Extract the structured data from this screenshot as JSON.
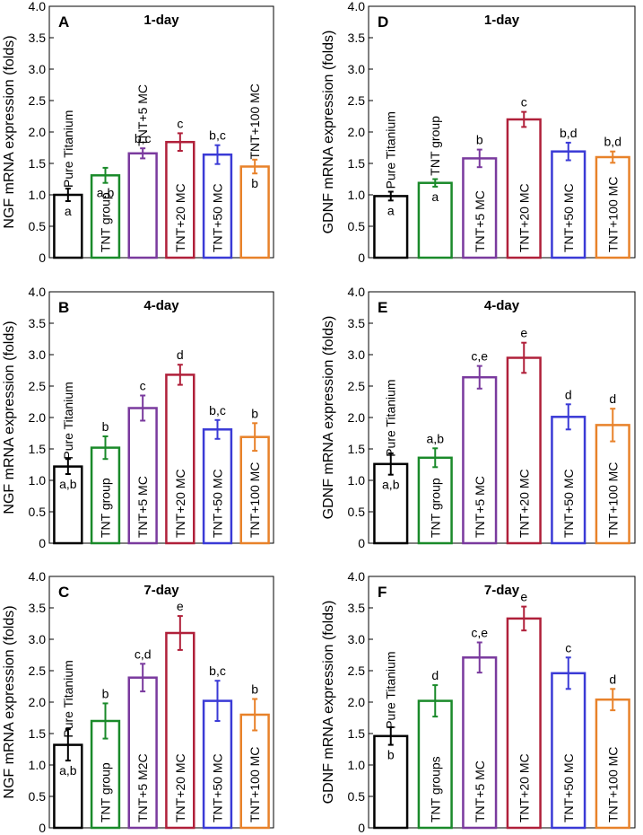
{
  "chart_data": [
    {
      "type": "bar",
      "panel": "A",
      "title": "1-day",
      "ylabel": "NGF mRNA expression (folds)",
      "ylim": [
        0,
        4.0
      ],
      "yticks": [
        "0",
        "0.5",
        "1.0",
        "1.5",
        "2.0",
        "2.5",
        "3.0",
        "3.5",
        "4.0"
      ],
      "categories": [
        "Pure Titanium",
        "TNT group",
        "TNT+5 MC",
        "TNT+20 MC",
        "TNT+50 MC",
        "TNT+100 MC"
      ],
      "values": [
        1.0,
        1.31,
        1.66,
        1.84,
        1.64,
        1.45
      ],
      "errors": [
        0.1,
        0.12,
        0.08,
        0.14,
        0.15,
        0.11
      ],
      "letters": [
        "a",
        "a,b",
        "b,c",
        "c",
        "b,c",
        "b"
      ],
      "label_pos": [
        "above",
        "in",
        "above",
        "in",
        "in",
        "above"
      ],
      "letter_pos": [
        "in",
        "in",
        "above",
        "above",
        "above",
        "in"
      ]
    },
    {
      "type": "bar",
      "panel": "D",
      "title": "1-day",
      "ylabel": "GDNF mRNA expression (folds)",
      "ylim": [
        0,
        4.0
      ],
      "yticks": [
        "0",
        "0.5",
        "1.0",
        "1.5",
        "2.0",
        "2.5",
        "3.0",
        "3.5",
        "4.0"
      ],
      "categories": [
        "Pure Titanium",
        "TNT group",
        "TNT+5 MC",
        "TNT+20 MC",
        "TNT+50 MC",
        "TNT+100 MC"
      ],
      "values": [
        0.98,
        1.19,
        1.58,
        2.2,
        1.69,
        1.6
      ],
      "errors": [
        0.07,
        0.06,
        0.14,
        0.12,
        0.14,
        0.09
      ],
      "letters": [
        "a",
        "a",
        "b",
        "c",
        "b,d",
        "b,d"
      ],
      "label_pos": [
        "above",
        "above",
        "in",
        "in",
        "in",
        "in"
      ],
      "letter_pos": [
        "in",
        "in",
        "above",
        "above",
        "above",
        "above"
      ]
    },
    {
      "type": "bar",
      "panel": "B",
      "title": "4-day",
      "ylabel": "NGF mRNA expression (folds)",
      "ylim": [
        0,
        4.0
      ],
      "yticks": [
        "0",
        "0.5",
        "1.0",
        "1.5",
        "2.0",
        "2.5",
        "3.0",
        "3.5",
        "4.0"
      ],
      "categories": [
        "Pure Titanium",
        "TNT group",
        "TNT+5 MC",
        "TNT+20 MC",
        "TNT+50 MC",
        "TNT+100 MC"
      ],
      "values": [
        1.22,
        1.52,
        2.15,
        2.68,
        1.81,
        1.69
      ],
      "errors": [
        0.12,
        0.18,
        0.2,
        0.16,
        0.15,
        0.22
      ],
      "letters": [
        "a,b",
        "b",
        "c",
        "d",
        "b,c",
        "b"
      ],
      "label_pos": [
        "above",
        "in",
        "in",
        "in",
        "in",
        "in"
      ],
      "letter_pos": [
        "in",
        "above",
        "above",
        "above",
        "above",
        "above"
      ]
    },
    {
      "type": "bar",
      "panel": "E",
      "title": "4-day",
      "ylabel": "GDNF mRNA expression (folds)",
      "ylim": [
        0,
        4.0
      ],
      "yticks": [
        "0",
        "0.5",
        "1.0",
        "1.5",
        "2.0",
        "2.5",
        "3.0",
        "3.5",
        "4.0"
      ],
      "categories": [
        "Pure Titanium",
        "TNT group",
        "TNT+5 MC",
        "TNT+20 MC",
        "TNT+50 MC",
        "TNT+100 MC"
      ],
      "values": [
        1.26,
        1.36,
        2.64,
        2.95,
        2.01,
        1.88
      ],
      "errors": [
        0.17,
        0.15,
        0.18,
        0.24,
        0.2,
        0.26
      ],
      "letters": [
        "a,b",
        "a,b",
        "c,e",
        "e",
        "d",
        "d"
      ],
      "label_pos": [
        "above",
        "in",
        "in",
        "in",
        "in",
        "in"
      ],
      "letter_pos": [
        "in",
        "above",
        "above",
        "above",
        "above",
        "above"
      ]
    },
    {
      "type": "bar",
      "panel": "C",
      "title": "7-day",
      "ylabel": "NGF mRNA expression (folds)",
      "ylim": [
        0,
        4.0
      ],
      "yticks": [
        "0",
        "0.5",
        "1.0",
        "1.5",
        "2.0",
        "2.5",
        "3.0",
        "3.5",
        "4.0"
      ],
      "categories": [
        "Pure Titanium",
        "TNT group",
        "TNT+5 M2C",
        "TNT+20 MC",
        "TNT+50 MC",
        "TNT+100 MC"
      ],
      "values": [
        1.32,
        1.7,
        2.39,
        3.1,
        2.02,
        1.8
      ],
      "errors": [
        0.25,
        0.28,
        0.22,
        0.27,
        0.32,
        0.25
      ],
      "letters": [
        "a,b",
        "b",
        "c,d",
        "e",
        "b,c",
        "b"
      ],
      "label_pos": [
        "above",
        "in",
        "in",
        "in",
        "in",
        "in"
      ],
      "letter_pos": [
        "in",
        "above",
        "above",
        "above",
        "above",
        "above"
      ]
    },
    {
      "type": "bar",
      "panel": "F",
      "title": "7-day",
      "ylabel": "GDNF mRNA expression (folds)",
      "ylim": [
        0,
        4.0
      ],
      "yticks": [
        "0",
        "0.5",
        "1.0",
        "1.5",
        "2.0",
        "2.5",
        "3.0",
        "3.5",
        "4.0"
      ],
      "categories": [
        "Pure Titanium",
        "TNT groups",
        "TNT+5 MC",
        "TNT+20 MC",
        "TNT+50 MC",
        "TNT+100 MC"
      ],
      "values": [
        1.46,
        2.02,
        2.71,
        3.33,
        2.46,
        2.04
      ],
      "errors": [
        0.14,
        0.25,
        0.24,
        0.19,
        0.25,
        0.17
      ],
      "letters": [
        "b",
        "d",
        "c,e",
        "e",
        "c",
        "d"
      ],
      "label_pos": [
        "above",
        "in",
        "in",
        "in",
        "in",
        "in"
      ],
      "letter_pos": [
        "in",
        "above",
        "above",
        "above",
        "above",
        "above"
      ]
    }
  ],
  "colors": {
    "bars": [
      "#000000",
      "#1a8a2a",
      "#7a3a9e",
      "#b0203a",
      "#3a3ad6",
      "#e8822a"
    ],
    "axis": "#000000",
    "text": "#000000"
  }
}
